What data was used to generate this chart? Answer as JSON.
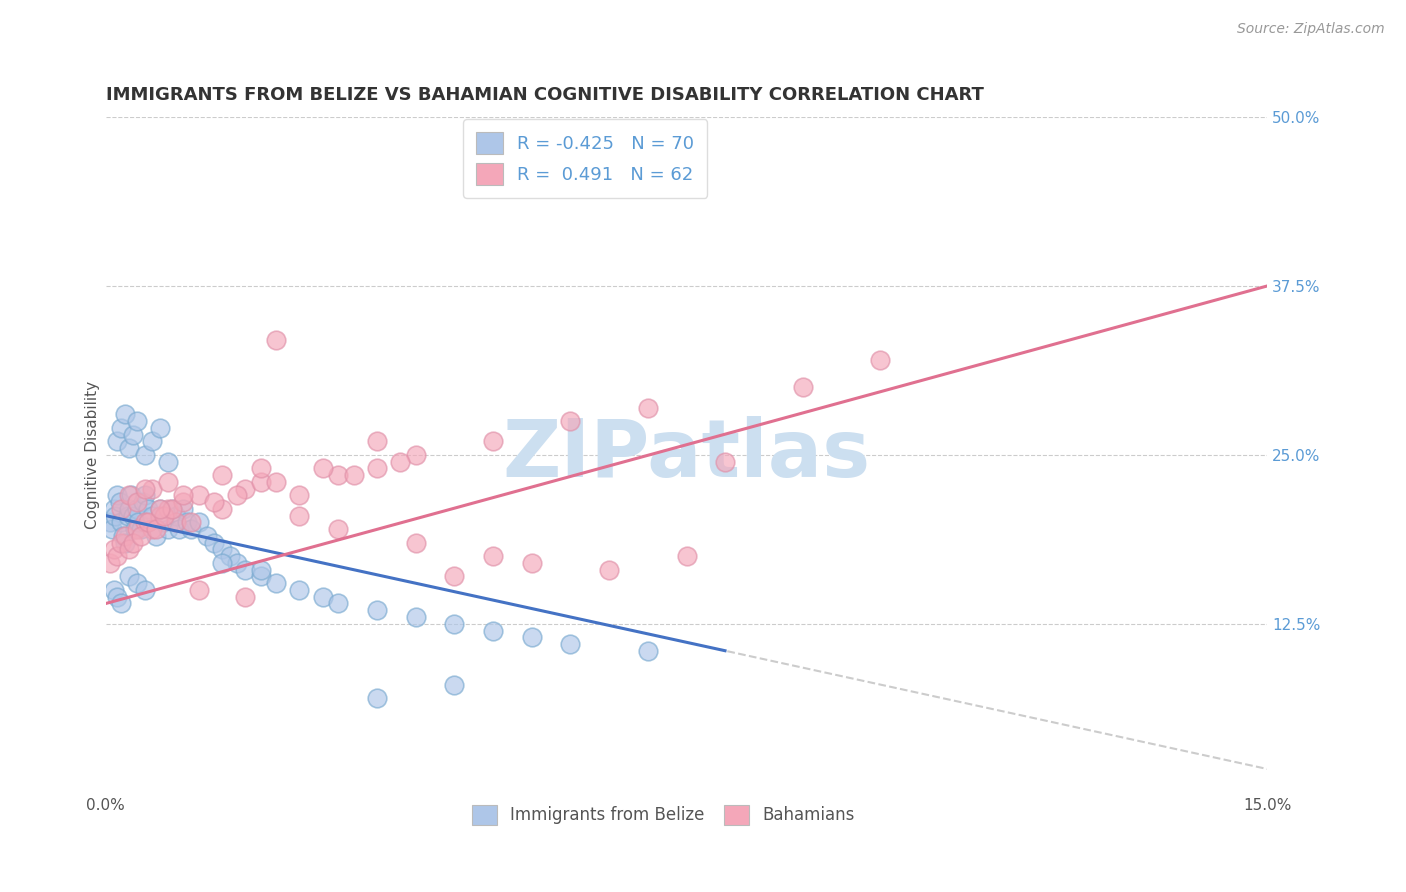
{
  "title": "IMMIGRANTS FROM BELIZE VS BAHAMIAN COGNITIVE DISABILITY CORRELATION CHART",
  "source": "Source: ZipAtlas.com",
  "ylabel": "Cognitive Disability",
  "legend": [
    {
      "label": "Immigrants from Belize",
      "R": -0.425,
      "N": 70,
      "color": "#aec6e8"
    },
    {
      "label": "Bahamians",
      "R": 0.491,
      "N": 62,
      "color": "#f4a7b9"
    }
  ],
  "watermark": "ZIPatlas",
  "blue_scatter_x": [
    0.05,
    0.08,
    0.1,
    0.12,
    0.15,
    0.18,
    0.2,
    0.22,
    0.25,
    0.28,
    0.3,
    0.32,
    0.35,
    0.38,
    0.4,
    0.42,
    0.45,
    0.48,
    0.5,
    0.55,
    0.6,
    0.65,
    0.7,
    0.75,
    0.8,
    0.85,
    0.9,
    0.95,
    1.0,
    1.05,
    1.1,
    1.2,
    1.3,
    1.4,
    1.5,
    1.6,
    1.7,
    1.8,
    2.0,
    2.2,
    2.5,
    2.8,
    3.0,
    3.5,
    4.0,
    4.5,
    5.0,
    5.5,
    6.0,
    7.0,
    0.15,
    0.2,
    0.25,
    0.3,
    0.35,
    0.4,
    0.5,
    0.6,
    0.7,
    0.8,
    0.1,
    0.15,
    0.2,
    0.3,
    0.4,
    0.5,
    3.5,
    4.5,
    1.5,
    2.0
  ],
  "blue_scatter_y": [
    20.0,
    19.5,
    21.0,
    20.5,
    22.0,
    21.5,
    20.0,
    19.0,
    18.5,
    20.5,
    21.0,
    22.0,
    20.5,
    19.5,
    21.0,
    20.0,
    19.5,
    21.5,
    22.0,
    21.0,
    20.5,
    19.0,
    21.0,
    20.0,
    19.5,
    21.0,
    20.5,
    19.5,
    21.0,
    20.0,
    19.5,
    20.0,
    19.0,
    18.5,
    18.0,
    17.5,
    17.0,
    16.5,
    16.0,
    15.5,
    15.0,
    14.5,
    14.0,
    13.5,
    13.0,
    12.5,
    12.0,
    11.5,
    11.0,
    10.5,
    26.0,
    27.0,
    28.0,
    25.5,
    26.5,
    27.5,
    25.0,
    26.0,
    27.0,
    24.5,
    15.0,
    14.5,
    14.0,
    16.0,
    15.5,
    15.0,
    7.0,
    8.0,
    17.0,
    16.5
  ],
  "pink_scatter_x": [
    0.05,
    0.1,
    0.15,
    0.2,
    0.25,
    0.3,
    0.4,
    0.5,
    0.6,
    0.7,
    0.8,
    0.9,
    1.0,
    1.2,
    1.5,
    1.8,
    2.0,
    2.5,
    3.0,
    3.5,
    4.0,
    5.0,
    6.0,
    7.0,
    8.0,
    9.0,
    10.0,
    0.35,
    0.45,
    0.55,
    0.65,
    0.75,
    0.85,
    1.1,
    1.4,
    1.7,
    2.2,
    2.8,
    3.2,
    3.8,
    4.5,
    5.5,
    6.5,
    7.5,
    0.2,
    0.3,
    0.4,
    0.6,
    0.8,
    1.0,
    1.5,
    2.0,
    0.5,
    0.7,
    2.5,
    3.0,
    4.0,
    5.0,
    1.2,
    1.8,
    2.2,
    3.5
  ],
  "pink_scatter_y": [
    17.0,
    18.0,
    17.5,
    18.5,
    19.0,
    18.0,
    19.5,
    20.0,
    19.5,
    20.5,
    21.0,
    20.0,
    21.5,
    22.0,
    21.0,
    22.5,
    23.0,
    22.0,
    23.5,
    24.0,
    25.0,
    26.0,
    27.5,
    28.5,
    24.5,
    30.0,
    32.0,
    18.5,
    19.0,
    20.0,
    19.5,
    20.5,
    21.0,
    20.0,
    21.5,
    22.0,
    23.0,
    24.0,
    23.5,
    24.5,
    16.0,
    17.0,
    16.5,
    17.5,
    21.0,
    22.0,
    21.5,
    22.5,
    23.0,
    22.0,
    23.5,
    24.0,
    22.5,
    21.0,
    20.5,
    19.5,
    18.5,
    17.5,
    15.0,
    14.5,
    33.5,
    26.0
  ],
  "xmin": 0.0,
  "xmax": 15.0,
  "ymin": 0.0,
  "ymax": 50.0,
  "blue_line_x0": 0.0,
  "blue_line_y0": 20.5,
  "blue_line_x1": 8.0,
  "blue_line_y1": 10.5,
  "pink_line_x0": 0.0,
  "pink_line_y0": 14.0,
  "pink_line_x1": 15.0,
  "pink_line_y1": 37.5,
  "blue_line_color": "#4472c4",
  "pink_line_color": "#e07090",
  "blue_dot_color": "#aec6e8",
  "pink_dot_color": "#f4a7b9",
  "blue_dot_edge": "#7aaad0",
  "pink_dot_edge": "#e090a8",
  "grid_color": "#cccccc",
  "watermark_color": "#ccdff0",
  "title_fontsize": 13,
  "source_fontsize": 10,
  "ylabel_fontsize": 11
}
